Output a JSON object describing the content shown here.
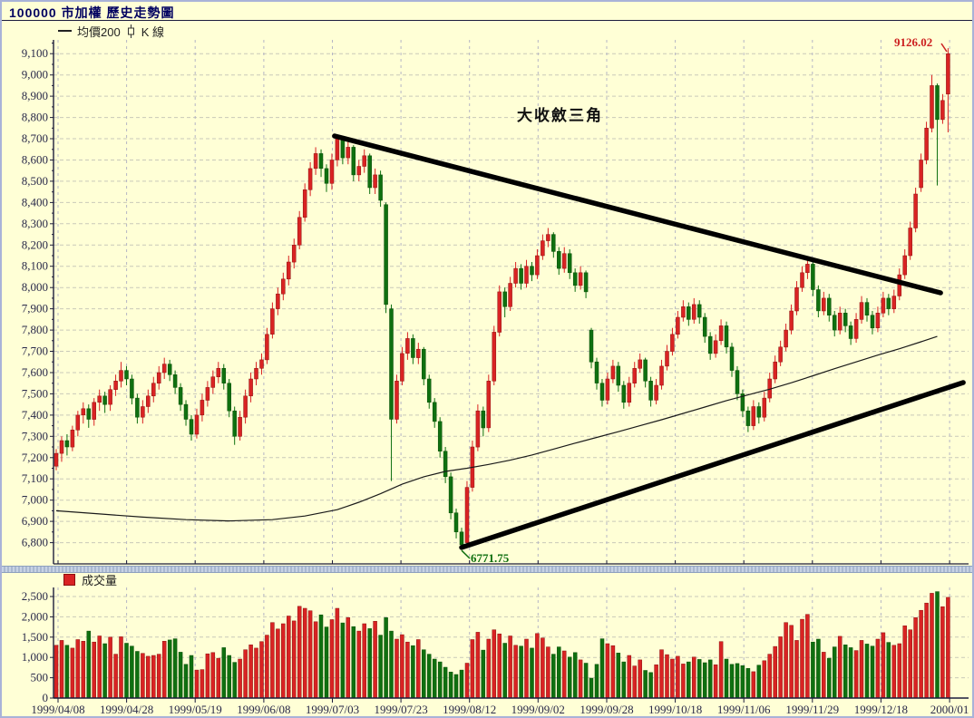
{
  "window": {
    "title": "100000 市加權  歷史走勢圖"
  },
  "legend_main": {
    "ma_label": "均價200",
    "kline_label": "K 線"
  },
  "legend_volume": {
    "label": "成交量"
  },
  "annotations": {
    "triangle_label": "大收斂三角",
    "high_label": "9126.02",
    "low_label": "6771.75"
  },
  "colors": {
    "background": "#ffffd6",
    "frame": "#a9b2d8",
    "title_text": "#000060",
    "up": "#d92323",
    "up_dark": "#8c0f0f",
    "down": "#0f7010",
    "down_dark": "#084d08",
    "grid_h": "#c9c9b9",
    "grid_v": "#b5b5c5",
    "axis": "#1c1c3c",
    "axis_text": "#2a2a4a",
    "ma_line": "#1a1a1a",
    "trendline": "#000000",
    "high_text": "#cc1f1f",
    "low_text": "#0e6e0e"
  },
  "chart_data": {
    "type": "candlestick+volume",
    "title": "100000 市加權 歷史走勢圖",
    "price_ylim": [
      6700,
      9165
    ],
    "volume_ylim": [
      0,
      2720
    ],
    "price_ticks": [
      6800,
      6900,
      7000,
      7100,
      7200,
      7300,
      7400,
      7500,
      7600,
      7700,
      7800,
      7900,
      8000,
      8100,
      8200,
      8300,
      8400,
      8500,
      8600,
      8700,
      8800,
      8900,
      9000,
      9100
    ],
    "volume_ticks": [
      0,
      500,
      1000,
      1500,
      2000,
      2500
    ],
    "x_labels": [
      "1999/04/08",
      "1999/04/28",
      "1999/05/19",
      "1999/06/08",
      "1999/07/03",
      "1999/07/23",
      "1999/08/12",
      "1999/09/02",
      "1999/09/28",
      "1999/10/18",
      "1999/11/06",
      "1999/11/29",
      "1999/12/18",
      "2000/01"
    ],
    "extremes": {
      "high": 9126.02,
      "low": 6771.75
    },
    "trendlines": [
      {
        "name": "upper",
        "from": [
          51.5,
          8713
        ],
        "to": [
          163.6,
          7975
        ]
      },
      {
        "name": "lower",
        "from": [
          75,
          6777
        ],
        "to": [
          167.8,
          7553
        ]
      }
    ],
    "ma200": [
      [
        0,
        6950
      ],
      [
        8,
        6935
      ],
      [
        16,
        6920
      ],
      [
        24,
        6908
      ],
      [
        32,
        6902
      ],
      [
        40,
        6908
      ],
      [
        46,
        6925
      ],
      [
        52,
        6955
      ],
      [
        56,
        6990
      ],
      [
        60,
        7030
      ],
      [
        64,
        7075
      ],
      [
        68,
        7110
      ],
      [
        72,
        7135
      ],
      [
        76,
        7150
      ],
      [
        80,
        7168
      ],
      [
        84,
        7188
      ],
      [
        88,
        7212
      ],
      [
        92,
        7240
      ],
      [
        96,
        7268
      ],
      [
        100,
        7295
      ],
      [
        104,
        7322
      ],
      [
        108,
        7350
      ],
      [
        112,
        7378
      ],
      [
        116,
        7408
      ],
      [
        120,
        7438
      ],
      [
        124,
        7468
      ],
      [
        128,
        7495
      ],
      [
        132,
        7522
      ],
      [
        136,
        7552
      ],
      [
        140,
        7585
      ],
      [
        144,
        7618
      ],
      [
        148,
        7650
      ],
      [
        152,
        7682
      ],
      [
        156,
        7712
      ],
      [
        160,
        7745
      ],
      [
        163,
        7770
      ]
    ],
    "ohlcv": [
      [
        7160,
        7240,
        7140,
        7220,
        1300
      ],
      [
        7220,
        7300,
        7180,
        7280,
        1420
      ],
      [
        7280,
        7310,
        7210,
        7250,
        1300
      ],
      [
        7250,
        7350,
        7230,
        7330,
        1230
      ],
      [
        7330,
        7420,
        7300,
        7400,
        1440
      ],
      [
        7400,
        7460,
        7360,
        7430,
        1400
      ],
      [
        7430,
        7450,
        7340,
        7380,
        1650
      ],
      [
        7380,
        7480,
        7350,
        7460,
        1380
      ],
      [
        7460,
        7520,
        7420,
        7490,
        1530
      ],
      [
        7490,
        7510,
        7410,
        7450,
        1340
      ],
      [
        7450,
        7540,
        7420,
        7520,
        1500
      ],
      [
        7520,
        7590,
        7490,
        7560,
        1080
      ],
      [
        7560,
        7650,
        7530,
        7610,
        1510
      ],
      [
        7610,
        7630,
        7540,
        7570,
        1350
      ],
      [
        7570,
        7590,
        7450,
        7480,
        1280
      ],
      [
        7480,
        7500,
        7360,
        7390,
        1150
      ],
      [
        7390,
        7470,
        7360,
        7440,
        1100
      ],
      [
        7440,
        7520,
        7410,
        7490,
        1030
      ],
      [
        7490,
        7580,
        7460,
        7550,
        1050
      ],
      [
        7550,
        7630,
        7520,
        7600,
        1080
      ],
      [
        7600,
        7670,
        7570,
        7640,
        1400
      ],
      [
        7640,
        7660,
        7560,
        7590,
        1430
      ],
      [
        7590,
        7610,
        7500,
        7530,
        1460
      ],
      [
        7530,
        7550,
        7420,
        7450,
        1130
      ],
      [
        7450,
        7470,
        7350,
        7380,
        830
      ],
      [
        7380,
        7400,
        7280,
        7310,
        1050
      ],
      [
        7310,
        7430,
        7290,
        7400,
        690
      ],
      [
        7400,
        7500,
        7370,
        7470,
        700
      ],
      [
        7470,
        7560,
        7440,
        7530,
        1090
      ],
      [
        7530,
        7610,
        7500,
        7580,
        1120
      ],
      [
        7580,
        7650,
        7550,
        7620,
        980
      ],
      [
        7620,
        7640,
        7520,
        7550,
        1240
      ],
      [
        7550,
        7570,
        7390,
        7420,
        1050
      ],
      [
        7420,
        7440,
        7260,
        7300,
        880
      ],
      [
        7300,
        7420,
        7280,
        7390,
        960
      ],
      [
        7390,
        7520,
        7360,
        7490,
        1190
      ],
      [
        7490,
        7600,
        7460,
        7570,
        1310
      ],
      [
        7570,
        7650,
        7540,
        7620,
        1230
      ],
      [
        7620,
        7690,
        7590,
        7660,
        1390
      ],
      [
        7660,
        7810,
        7640,
        7780,
        1550
      ],
      [
        7780,
        7930,
        7760,
        7900,
        1860
      ],
      [
        7900,
        8000,
        7870,
        7970,
        1700
      ],
      [
        7970,
        8070,
        7940,
        8040,
        1830
      ],
      [
        8040,
        8150,
        8010,
        8120,
        2020
      ],
      [
        8120,
        8230,
        8090,
        8200,
        1900
      ],
      [
        8200,
        8360,
        8180,
        8330,
        2260
      ],
      [
        8330,
        8490,
        8310,
        8460,
        2210
      ],
      [
        8460,
        8590,
        8430,
        8560,
        2150
      ],
      [
        8560,
        8660,
        8530,
        8630,
        1880
      ],
      [
        8630,
        8650,
        8520,
        8560,
        2050
      ],
      [
        8560,
        8580,
        8450,
        8490,
        1750
      ],
      [
        8490,
        8630,
        8460,
        8600,
        1930
      ],
      [
        8600,
        8710,
        8570,
        8700,
        2210
      ],
      [
        8700,
        8700,
        8580,
        8610,
        1850
      ],
      [
        8610,
        8690,
        8580,
        8660,
        1980
      ],
      [
        8660,
        8670,
        8500,
        8530,
        1760
      ],
      [
        8530,
        8600,
        8500,
        8570,
        1650
      ],
      [
        8570,
        8650,
        8540,
        8620,
        1830
      ],
      [
        8620,
        8630,
        8440,
        8470,
        1710
      ],
      [
        8470,
        8560,
        8440,
        8530,
        1890
      ],
      [
        8530,
        8550,
        8380,
        8410,
        1550
      ],
      [
        8390,
        8400,
        7880,
        7920,
        1980
      ],
      [
        7900,
        7920,
        7090,
        7380,
        1650
      ],
      [
        7380,
        7590,
        7360,
        7560,
        1450
      ],
      [
        7560,
        7720,
        7540,
        7690,
        1560
      ],
      [
        7690,
        7790,
        7660,
        7760,
        1380
      ],
      [
        7760,
        7780,
        7640,
        7670,
        1290
      ],
      [
        7670,
        7740,
        7640,
        7710,
        1440
      ],
      [
        7710,
        7720,
        7540,
        7570,
        1190
      ],
      [
        7570,
        7590,
        7430,
        7460,
        1080
      ],
      [
        7460,
        7480,
        7340,
        7370,
        960
      ],
      [
        7370,
        7390,
        7200,
        7230,
        890
      ],
      [
        7230,
        7250,
        7080,
        7110,
        760
      ],
      [
        7110,
        7130,
        6910,
        6940,
        640
      ],
      [
        6940,
        6960,
        6820,
        6850,
        580
      ],
      [
        6850,
        6870,
        6771.75,
        6790,
        690
      ],
      [
        6800,
        7090,
        6780,
        7060,
        860
      ],
      [
        7060,
        7280,
        7040,
        7250,
        1440
      ],
      [
        7250,
        7450,
        7230,
        7420,
        1620
      ],
      [
        7420,
        7440,
        7300,
        7340,
        1180
      ],
      [
        7340,
        7590,
        7320,
        7560,
        1450
      ],
      [
        7560,
        7820,
        7540,
        7790,
        1680
      ],
      [
        7790,
        8010,
        7770,
        7980,
        1580
      ],
      [
        7980,
        8000,
        7860,
        7910,
        1350
      ],
      [
        7910,
        8050,
        7890,
        8020,
        1530
      ],
      [
        8020,
        8120,
        8000,
        8090,
        1300
      ],
      [
        8090,
        8110,
        7990,
        8020,
        1280
      ],
      [
        8020,
        8130,
        8000,
        8100,
        1450
      ],
      [
        8100,
        8120,
        8030,
        8060,
        1230
      ],
      [
        8060,
        8180,
        8040,
        8150,
        1590
      ],
      [
        8150,
        8250,
        8130,
        8220,
        1480
      ],
      [
        8220,
        8280,
        8190,
        8250,
        1260
      ],
      [
        8250,
        8260,
        8140,
        8170,
        1080
      ],
      [
        8170,
        8190,
        8060,
        8090,
        1260
      ],
      [
        8090,
        8190,
        8070,
        8160,
        1160
      ],
      [
        8160,
        8180,
        8040,
        8070,
        1010
      ],
      [
        8070,
        8090,
        7980,
        8010,
        1120
      ],
      [
        8010,
        8100,
        7990,
        8070,
        940
      ],
      [
        8070,
        8080,
        7950,
        7980,
        860
      ],
      [
        7800,
        7810,
        7620,
        7650,
        490
      ],
      [
        7650,
        7670,
        7520,
        7550,
        830
      ],
      [
        7550,
        7570,
        7440,
        7470,
        1460
      ],
      [
        7470,
        7600,
        7450,
        7570,
        1340
      ],
      [
        7570,
        7660,
        7550,
        7630,
        1290
      ],
      [
        7630,
        7650,
        7510,
        7540,
        1110
      ],
      [
        7540,
        7560,
        7430,
        7460,
        890
      ],
      [
        7460,
        7580,
        7440,
        7550,
        1050
      ],
      [
        7550,
        7650,
        7530,
        7620,
        790
      ],
      [
        7620,
        7690,
        7600,
        7660,
        940
      ],
      [
        7660,
        7670,
        7530,
        7560,
        680
      ],
      [
        7560,
        7580,
        7440,
        7470,
        630
      ],
      [
        7470,
        7570,
        7450,
        7540,
        820
      ],
      [
        7540,
        7660,
        7520,
        7630,
        1190
      ],
      [
        7630,
        7730,
        7610,
        7700,
        1070
      ],
      [
        7700,
        7810,
        7680,
        7780,
        960
      ],
      [
        7780,
        7890,
        7760,
        7860,
        1030
      ],
      [
        7860,
        7940,
        7840,
        7910,
        840
      ],
      [
        7910,
        7930,
        7820,
        7850,
        890
      ],
      [
        7850,
        7950,
        7830,
        7920,
        1010
      ],
      [
        7920,
        7940,
        7830,
        7860,
        950
      ],
      [
        7860,
        7880,
        7740,
        7770,
        870
      ],
      [
        7770,
        7790,
        7660,
        7690,
        940
      ],
      [
        7690,
        7780,
        7670,
        7750,
        820
      ],
      [
        7750,
        7850,
        7730,
        7820,
        1390
      ],
      [
        7820,
        7840,
        7690,
        7720,
        960
      ],
      [
        7720,
        7740,
        7580,
        7610,
        830
      ],
      [
        7610,
        7630,
        7470,
        7500,
        850
      ],
      [
        7500,
        7520,
        7390,
        7420,
        800
      ],
      [
        7420,
        7440,
        7320,
        7350,
        730
      ],
      [
        7350,
        7470,
        7330,
        7440,
        650
      ],
      [
        7440,
        7460,
        7360,
        7390,
        810
      ],
      [
        7390,
        7510,
        7370,
        7480,
        920
      ],
      [
        7480,
        7600,
        7460,
        7570,
        1080
      ],
      [
        7570,
        7680,
        7550,
        7650,
        1270
      ],
      [
        7650,
        7750,
        7630,
        7720,
        1510
      ],
      [
        7720,
        7830,
        7700,
        7800,
        1860
      ],
      [
        7800,
        7920,
        7780,
        7890,
        1790
      ],
      [
        7890,
        8030,
        7870,
        8000,
        1420
      ],
      [
        8000,
        8100,
        7980,
        8070,
        1940
      ],
      [
        8070,
        8140,
        8040,
        8110,
        2060
      ],
      [
        8110,
        8120,
        7960,
        7990,
        1380
      ],
      [
        7990,
        8010,
        7860,
        7890,
        1450
      ],
      [
        7890,
        7980,
        7870,
        7950,
        1130
      ],
      [
        7950,
        7970,
        7840,
        7870,
        980
      ],
      [
        7870,
        7890,
        7770,
        7800,
        1260
      ],
      [
        7800,
        7910,
        7780,
        7880,
        1520
      ],
      [
        7880,
        7900,
        7790,
        7820,
        1310
      ],
      [
        7820,
        7840,
        7730,
        7760,
        1240
      ],
      [
        7760,
        7880,
        7740,
        7850,
        1170
      ],
      [
        7850,
        7960,
        7830,
        7930,
        1420
      ],
      [
        7930,
        7950,
        7840,
        7870,
        1330
      ],
      [
        7870,
        7890,
        7780,
        7810,
        1280
      ],
      [
        7810,
        7910,
        7790,
        7880,
        1450
      ],
      [
        7880,
        7980,
        7860,
        7950,
        1610
      ],
      [
        7950,
        7970,
        7870,
        7900,
        1370
      ],
      [
        7900,
        7990,
        7880,
        7960,
        1300
      ],
      [
        7960,
        8090,
        7940,
        8060,
        1340
      ],
      [
        8060,
        8180,
        8040,
        8150,
        1780
      ],
      [
        8150,
        8310,
        8130,
        8280,
        1680
      ],
      [
        8280,
        8470,
        8260,
        8440,
        1980
      ],
      [
        8470,
        8630,
        8450,
        8600,
        2160
      ],
      [
        8600,
        8780,
        8580,
        8750,
        2340
      ],
      [
        8750,
        9000,
        8730,
        8950,
        2580
      ],
      [
        8950,
        8960,
        8480,
        8790,
        2620
      ],
      [
        8790,
        8910,
        8770,
        8880,
        2250
      ],
      [
        8910,
        9126.02,
        8730,
        9100,
        2480
      ]
    ]
  }
}
